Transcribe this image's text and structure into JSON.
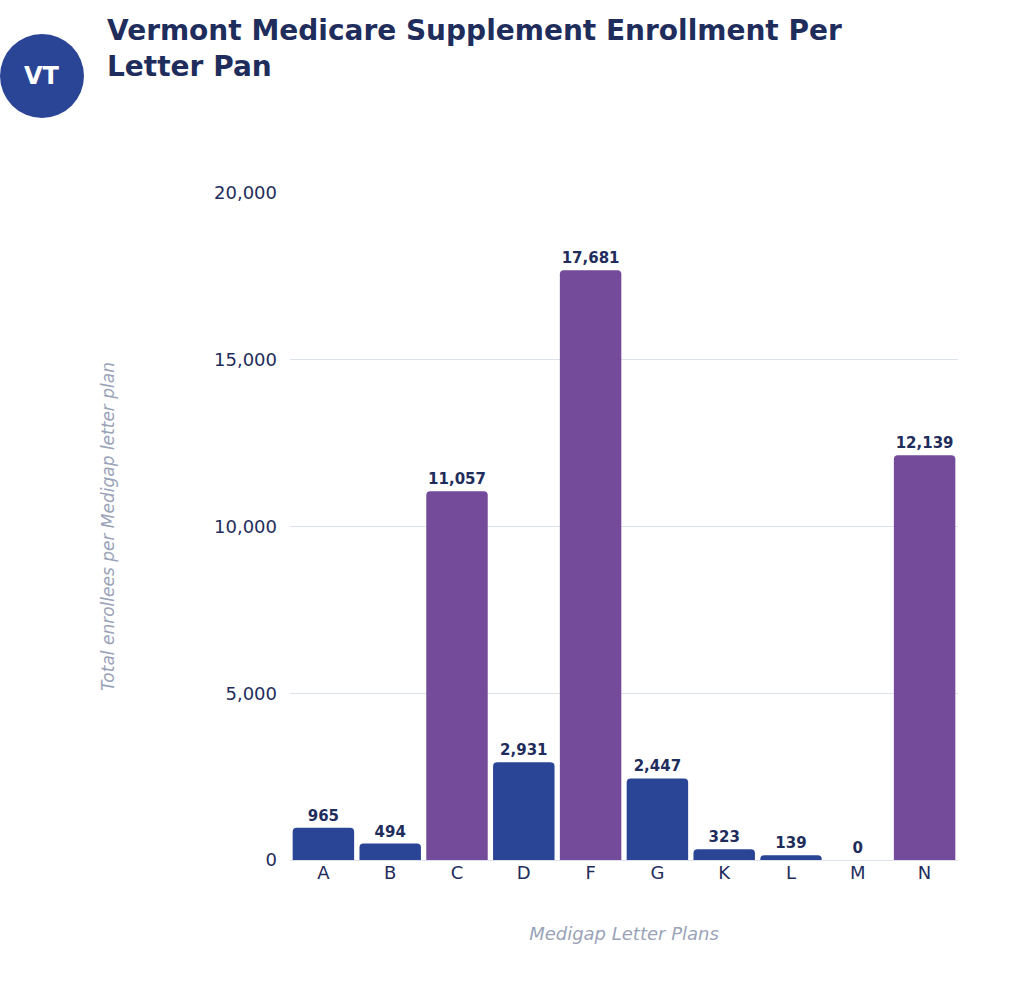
{
  "chart_data": {
    "type": "bar",
    "title": "Vermont Medicare Supplement Enrollment Per Letter Pan",
    "annotations": [
      "VT"
    ],
    "x_label": "Medigap Letter Plans",
    "y_label": "Total enrollees per Medigap letter plan",
    "categories": [
      "A",
      "B",
      "C",
      "D",
      "F",
      "G",
      "K",
      "L",
      "M",
      "N"
    ],
    "values": [
      965,
      494,
      11057,
      2931,
      17681,
      2447,
      323,
      139,
      0,
      12139
    ],
    "value_labels": [
      "965",
      "494",
      "11,057",
      "2,931",
      "17,681",
      "2,447",
      "323",
      "139",
      "0",
      "12,139"
    ],
    "colors": [
      "#2b4596",
      "#2b4596",
      "#744a9b",
      "#2b4596",
      "#744a9b",
      "#2b4596",
      "#2b4596",
      "#2b4596",
      "#2b4596",
      "#744a9b"
    ],
    "ylim": [
      0,
      20000
    ],
    "yticks": [
      0,
      {
        "value": 5000,
        "label": "5,000"
      },
      {
        "value": 10000,
        "label": "10,000"
      },
      {
        "value": 15000,
        "label": "15,000"
      },
      {
        "value": 20000,
        "label": "20,000"
      }
    ],
    "grid": true,
    "data_labels": true
  }
}
